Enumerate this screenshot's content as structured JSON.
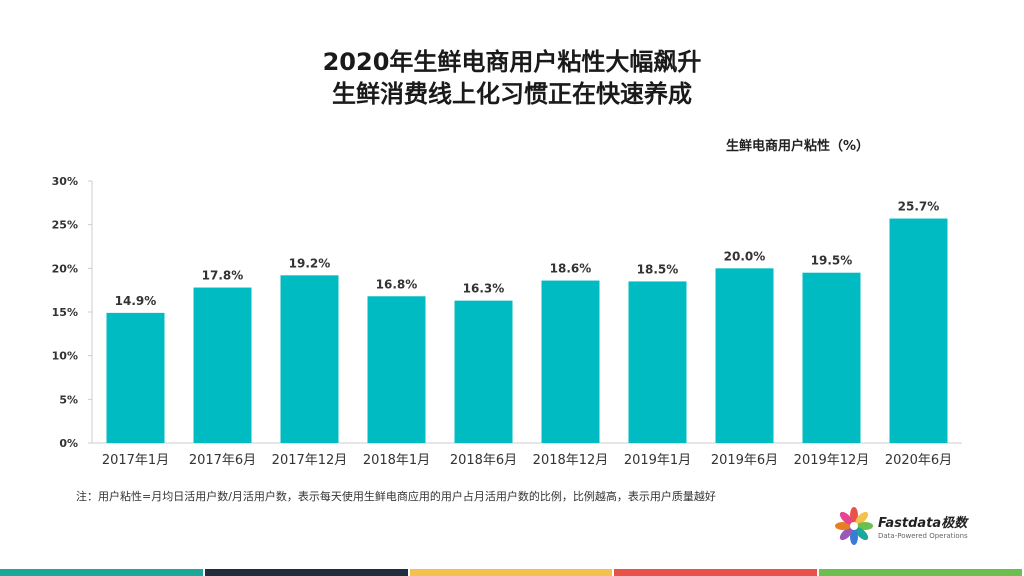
{
  "title_line1": "2020年生鲜电商用户粘性大幅飙升",
  "title_line2": "生鲜消费线上化习惯正在快速养成",
  "note": "注：用户粘性=月均日活用户数/月活用户数，表示每天使用生鲜电商应用的用户占月活用户数的比例，比例越高，表示用户质量越好",
  "logo": {
    "text": "Fastdata极数",
    "sub": "Data-Powered Operations"
  },
  "colors": {
    "bar": "#00BCC2",
    "axis": "#cccccc",
    "bottom_bar": [
      "#1aa89a",
      "#1f2d3d",
      "#f2c14e",
      "#e8524a",
      "#6cbf4f"
    ]
  },
  "chart_data": {
    "type": "bar",
    "title": "2020年生鲜电商用户粘性大幅飙升",
    "legend": "生鲜电商用户粘性（%）",
    "categories": [
      "2017年1月",
      "2017年6月",
      "2017年12月",
      "2018年1月",
      "2018年6月",
      "2018年12月",
      "2019年1月",
      "2019年6月",
      "2019年12月",
      "2020年6月"
    ],
    "values": [
      14.9,
      17.8,
      19.2,
      16.8,
      16.3,
      18.6,
      18.5,
      20.0,
      19.5,
      25.7
    ],
    "value_labels": [
      "14.9%",
      "17.8%",
      "19.2%",
      "16.8%",
      "16.3%",
      "18.6%",
      "18.5%",
      "20.0%",
      "19.5%",
      "25.7%"
    ],
    "yticks": [
      "0%",
      "5%",
      "10%",
      "15%",
      "20%",
      "25%",
      "30%"
    ],
    "ylim": [
      0,
      30
    ],
    "grid": false
  }
}
